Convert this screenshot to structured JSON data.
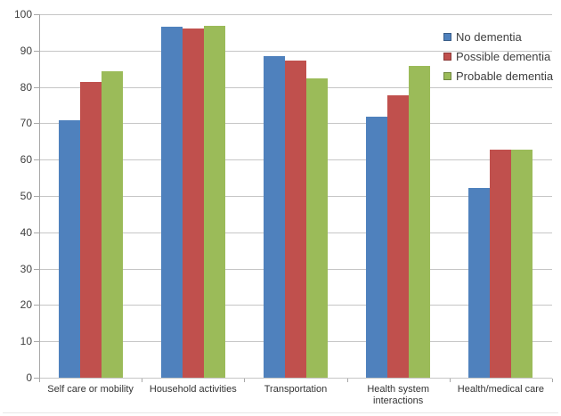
{
  "chart_data": {
    "type": "bar",
    "title": "",
    "xlabel": "",
    "ylabel": "",
    "categories": [
      "Self care or mobility",
      "Household activities",
      "Transportation",
      "Health system\ninteractions",
      "Health/medical care"
    ],
    "series": [
      {
        "name": "No dementia",
        "color": "#4F81BD",
        "values": [
          70.9,
          96.5,
          88.5,
          71.9,
          52.2
        ]
      },
      {
        "name": "Possible dementia",
        "color": "#C0504D",
        "values": [
          81.3,
          96.2,
          87.3,
          77.6,
          62.8
        ]
      },
      {
        "name": "Probable dementia",
        "color": "#9BBB59",
        "values": [
          84.4,
          96.7,
          82.4,
          85.7,
          62.7
        ]
      }
    ],
    "ylim": [
      0,
      100
    ],
    "ytick_step": 10,
    "ytick_labels": [
      "0",
      "10",
      "20",
      "30",
      "40",
      "50",
      "60",
      "70",
      "80",
      "90",
      "100"
    ],
    "grid": true,
    "legend_position": "top-right"
  },
  "colors": {
    "gridline": "#c6c6c6",
    "axis": "#a8a8a8",
    "text": "#3f3f3f"
  }
}
